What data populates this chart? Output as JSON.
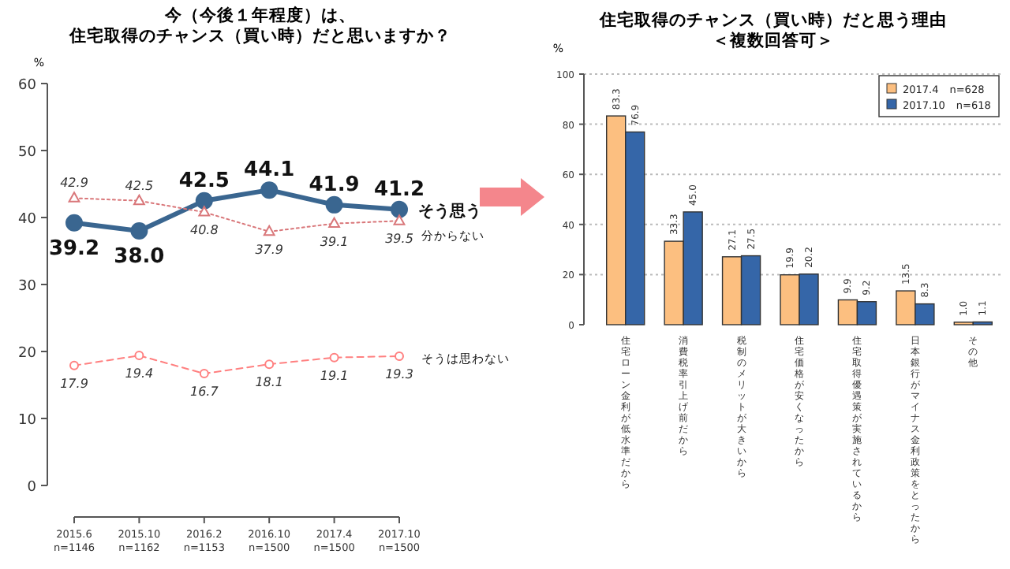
{
  "chart_data": [
    {
      "type": "line",
      "title": "今（今後１年程度）は、",
      "subtitle": "住宅取得のチャンス（買い時）だと思いますか？",
      "ylabel": "%",
      "categories": [
        "2015.6\nn=1146",
        "2015.10\nn=1162",
        "2016.2\nn=1153",
        "2016.10\nn=1500",
        "2017.4\nn=1500",
        "2017.10\nn=1500"
      ],
      "ylim": [
        0,
        60
      ],
      "yticks": [
        0,
        10,
        20,
        30,
        40,
        50,
        60
      ],
      "grid": false,
      "series": [
        {
          "name": "そう思う",
          "color": "#3a6690",
          "marker": "circle",
          "line_style": "solid",
          "values": [
            39.2,
            38.0,
            42.5,
            44.1,
            41.9,
            41.2
          ],
          "value_labels": [
            "39.2",
            "38.0",
            "42.5",
            "44.1",
            "41.9",
            "41.2"
          ]
        },
        {
          "name": "分からない",
          "color": "#d9777a",
          "marker": "triangle",
          "line_style": "dotted",
          "values": [
            42.9,
            42.5,
            40.8,
            37.9,
            39.1,
            39.5
          ],
          "value_labels": [
            "42.9",
            "42.5",
            "40.8",
            "37.9",
            "39.1",
            "39.5"
          ]
        },
        {
          "name": "そうは思わない",
          "color": "#ff8080",
          "marker": "circle",
          "line_style": "dashed",
          "values": [
            17.9,
            19.4,
            16.7,
            18.1,
            19.1,
            19.3
          ],
          "value_labels": [
            "17.9",
            "19.4",
            "16.7",
            "18.1",
            "19.1",
            "19.3"
          ]
        }
      ]
    },
    {
      "type": "bar",
      "title": "住宅取得のチャンス（買い時）だと思う理由",
      "subtitle": "＜複数回答可＞",
      "ylabel": "%",
      "categories": [
        "住宅ローン金利が低水準だから",
        "消費税率引上げ前だから",
        "税制のメリットが大きいから",
        "住宅価格が安くなったから",
        "住宅取得優遇策が実施されているから",
        "日本銀行がマイナス金利政策をとったから",
        "その他"
      ],
      "ylim": [
        0,
        100
      ],
      "yticks": [
        0,
        20,
        40,
        60,
        80,
        100
      ],
      "grid": "y",
      "legend": "top right",
      "series": [
        {
          "name": "2017.4　n=628",
          "color": "#fcbf80",
          "values": [
            83.3,
            33.3,
            27.1,
            19.9,
            9.9,
            13.5,
            1.0
          ],
          "value_labels": [
            "83.3",
            "33.3",
            "27.1",
            "19.9",
            "9.9",
            "13.5",
            "1.0"
          ]
        },
        {
          "name": "2017.10　n=618",
          "color": "#3566a8",
          "values": [
            76.9,
            45.0,
            27.5,
            20.2,
            9.2,
            8.3,
            1.1
          ],
          "value_labels": [
            "76.9",
            "45.0",
            "27.5",
            "20.2",
            "9.2",
            "8.3",
            "1.1"
          ]
        }
      ]
    }
  ]
}
